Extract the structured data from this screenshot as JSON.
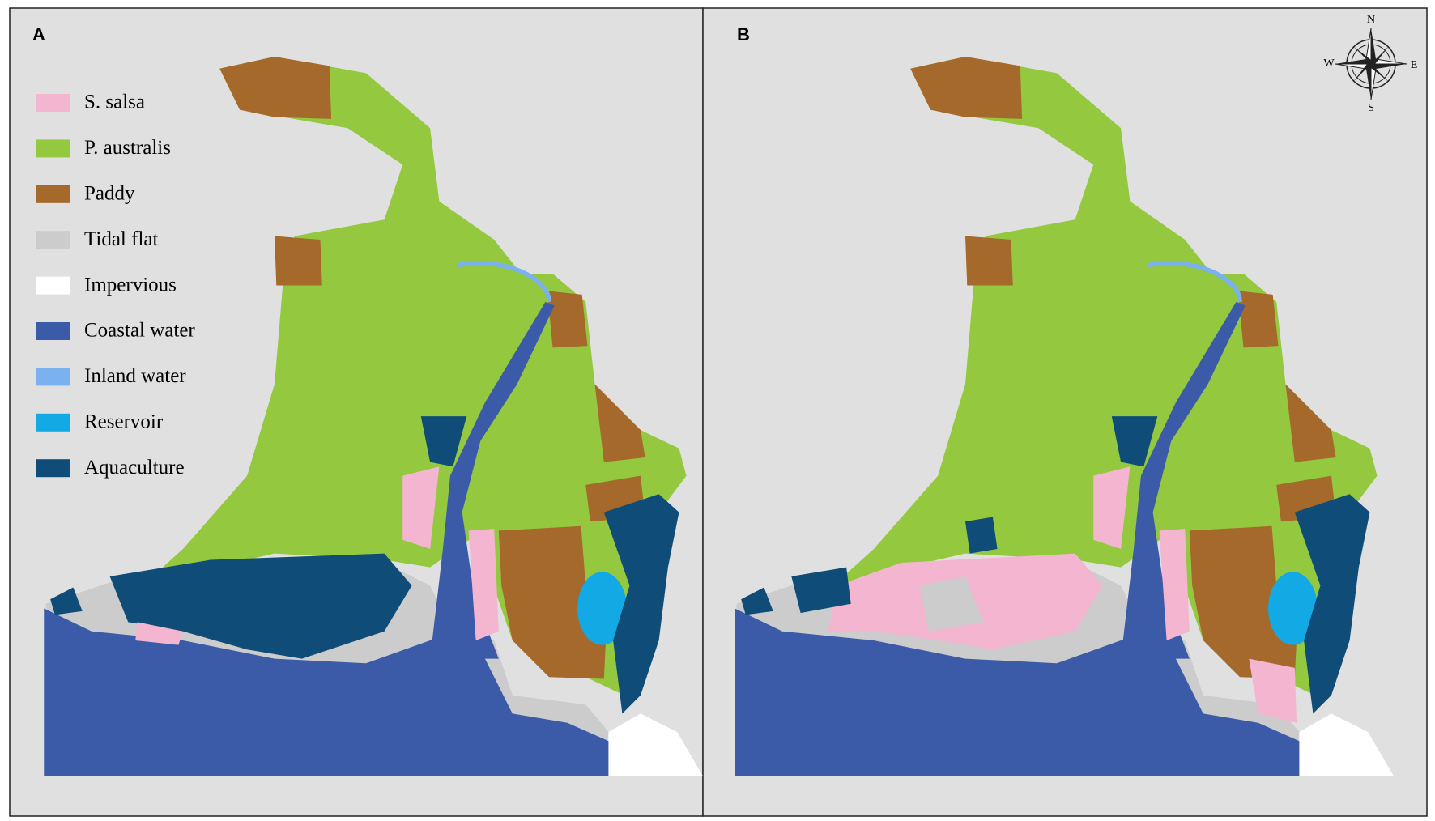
{
  "panels": [
    {
      "label": "A"
    },
    {
      "label": "B"
    }
  ],
  "legend": [
    {
      "name": "S. salsa",
      "color": "#f4b5d0"
    },
    {
      "name": "P. australis",
      "color": "#93c83f"
    },
    {
      "name": "Paddy",
      "color": "#a4692b"
    },
    {
      "name": "Tidal flat",
      "color": "#cccccc"
    },
    {
      "name": "Impervious",
      "color": "#ffffff"
    },
    {
      "name": "Coastal water",
      "color": "#3b5ba9"
    },
    {
      "name": "Inland water",
      "color": "#7bb1ef"
    },
    {
      "name": "Reservoir",
      "color": "#12a9e5"
    },
    {
      "name": "Aquaculture",
      "color": "#0f4c77"
    }
  ],
  "compass": {
    "n": "N",
    "e": "E",
    "s": "S",
    "w": "W"
  }
}
